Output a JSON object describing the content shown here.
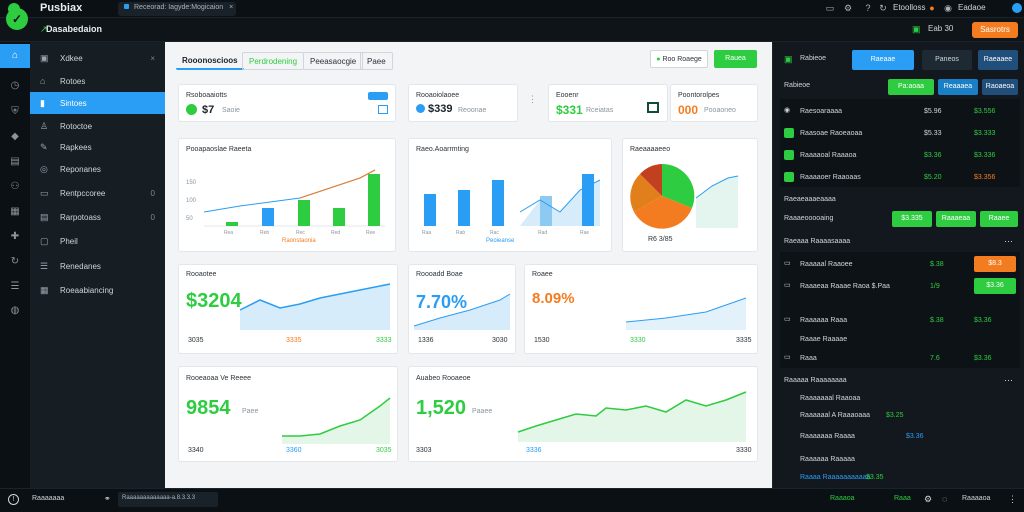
{
  "topbar": {
    "app_title": "Pusbiax",
    "tab_label": "Receorad: Iagyde:Mogicaion",
    "user_label": "Etoolloss",
    "help_label": "Eadaoe"
  },
  "subbar": {
    "title": "Dasabedaion",
    "count": "Eab 30",
    "action_label": "Sasrotrs"
  },
  "sidebar": {
    "items": [
      {
        "label": "Xdkee",
        "count": "×"
      },
      {
        "label": "Rotoes",
        "count": ""
      },
      {
        "label": "Sintoes",
        "count": ""
      },
      {
        "label": "Rotoctoe",
        "count": ""
      },
      {
        "label": "Rapkees",
        "count": ""
      },
      {
        "label": "Reponanes",
        "count": ""
      },
      {
        "label": "Rentpccoree",
        "count": "0"
      },
      {
        "label": "Rarpotoass",
        "count": "0"
      },
      {
        "label": "Pheil",
        "count": ""
      },
      {
        "label": "Renedanes",
        "count": ""
      },
      {
        "label": "Roeaabiancing",
        "count": ""
      }
    ]
  },
  "main": {
    "tabs": [
      "Rooonoscioos",
      "Perdrodening",
      "Peeasaocgie",
      "Paee"
    ],
    "action_secondary": "Roo Roaege",
    "action_primary": "Rauea",
    "kpis": [
      {
        "label": "Rsoboaaiotts",
        "value": "$7",
        "sub": "Saoie",
        "color": "#2ecc40"
      },
      {
        "label": "Rooaoiolaoee",
        "value": "$339",
        "sub": "Reoonae",
        "color": "#2a9df4"
      },
      {
        "label": "Eooenr",
        "value": "$331",
        "sub": "Rceiatas",
        "color": "#2ecc40"
      },
      {
        "label": "Poontorolpes",
        "value": "000",
        "sub": "Pooaoneo",
        "color": "#f47c20"
      }
    ],
    "chart1": {
      "title": "Pooapaoslae Raeeta",
      "foot": "Raonstaonia"
    },
    "chart2": {
      "title": "Raeo.Aoarrmting",
      "foot": "Peoieanse"
    },
    "chart3": {
      "title": "Raeaaaaeeo",
      "value_label": "R6 3/85"
    },
    "metric1": {
      "title": "Rooaotee",
      "value": "$3204",
      "f1": "3035",
      "f2": "3335",
      "f3": "3333"
    },
    "metric2": {
      "title": "Roooadd Boae",
      "value": "7.70%",
      "f1": "1336",
      "f2": "3030"
    },
    "metric3": {
      "title": "Roaee",
      "value": "8.09%",
      "f1": "1530",
      "f2": "3330",
      "f3": "3335"
    },
    "metric4": {
      "title": "Rooeaoaa Ve Reeee",
      "value": "9854",
      "unit": "Paee",
      "f1": "3340",
      "f2": "3360",
      "f3": "3035"
    },
    "metric5": {
      "title": "Auabeo Rooaeoe",
      "value": "1,520",
      "unit": "Paaee",
      "f1": "3303",
      "f2": "3336",
      "f3": "3330"
    }
  },
  "right": {
    "tabs": [
      "Rabieoe",
      "Raeaae",
      "Paneos",
      "Raeaaee"
    ],
    "buttons1": [
      "Pa:aoaa",
      "Reaaaea",
      "Raoaeoa"
    ],
    "rows": [
      {
        "label": "Raesoaraaaa",
        "v1": "$5.96",
        "v2": "$3.556",
        "c1": "#cfd6dc",
        "c2": "#2ecc40"
      },
      {
        "label": "Raasoae Raoeaoaa",
        "v1": "$5.33",
        "v2": "$3.333",
        "c1": "#cfd6dc",
        "c2": "#2ecc40"
      },
      {
        "label": "Raaaaoal Raaaoa",
        "v1": "$3.36",
        "v2": "$3.336",
        "c1": "#2ecc40",
        "c2": "#2ecc40"
      },
      {
        "label": "Raaaaoer Raaoaas",
        "v1": "$5.20",
        "v2": "$3.356",
        "c1": "#2ecc40",
        "c2": "#f47c20"
      }
    ],
    "section2": "Raeaeaaaeaaaa",
    "section2_row": "Raaaeooooaing",
    "buttons2": [
      "$3.335",
      "Raaaeaa",
      "Raaee"
    ],
    "section3": "Raeaaa Raaaasaaaa",
    "rows2": [
      {
        "label": "Raaaaal Raaoee",
        "v1": "$.38",
        "v2": "$8.3"
      },
      {
        "label": "Raaaeaa Raaae Raoa $.Paa",
        "v1": "1/9",
        "v2": "$3.36"
      },
      {
        "label": "Raaaaaa Raaa",
        "v1": "$.38",
        "v2": "$3.36"
      }
    ],
    "section4": "Raaae Raaaae",
    "row4": {
      "label": "Raaa",
      "v1": "7.6",
      "v2": "$3.36"
    },
    "section5": "Raaaaa Raaaaaaaa",
    "rows5": [
      {
        "label": "Raaaaaaal Raaoaa"
      },
      {
        "label": "Raaaaaal A Raaaoaaa",
        "v1": "$3.25"
      },
      {
        "label": "Raaaaaaa Raaaa",
        "v2": "$3.36"
      },
      {
        "label": "Raaaaaa Raaaaa"
      },
      {
        "label": "Raaaa Raaaaaaaaaaa",
        "v1": "$3.35"
      }
    ]
  },
  "status": {
    "left": "Raaaaaaa",
    "mid": "Raaaaaaaaaaaaa-a.8.3.3.3",
    "r1": "Raaaoa",
    "r2": "Raaa",
    "r3": "Raaaaoa",
    "r4": "Raaaaaa"
  },
  "colors": {
    "green": "#2ecc40",
    "blue": "#2a9df4",
    "orange": "#f47c20"
  }
}
